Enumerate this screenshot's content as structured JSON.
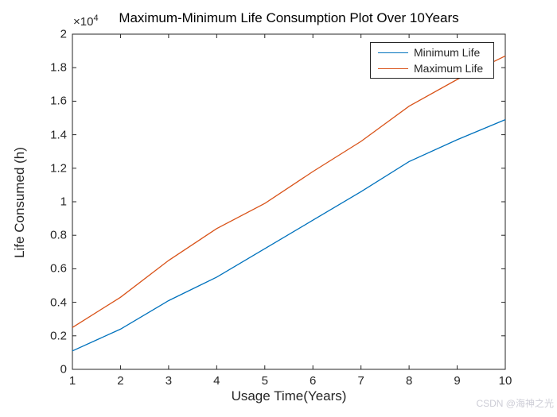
{
  "figure": {
    "title": "Maximum-Minimum Life Consumption Plot Over 10Years",
    "exponent_prefix": "×10",
    "exponent_power": "4",
    "xlabel": "Usage Time(Years)",
    "ylabel": "Life Consumed (h)",
    "axis_color": "#262626"
  },
  "legend": {
    "entries": [
      {
        "label": "Minimum Life",
        "color": "#0072BD"
      },
      {
        "label": "Maximum Life",
        "color": "#D95319"
      }
    ]
  },
  "watermark": "CSDN @海神之光",
  "chart_data": {
    "type": "line",
    "title": "Maximum-Minimum Life Consumption Plot Over 10Years",
    "xlabel": "Usage Time(Years)",
    "ylabel": "Life Consumed (h)",
    "x": [
      1,
      2,
      3,
      4,
      5,
      6,
      7,
      8,
      9,
      10
    ],
    "series": [
      {
        "name": "Minimum Life",
        "color": "#0072BD",
        "values": [
          1100,
          2400,
          4100,
          5500,
          7200,
          8900,
          10600,
          12400,
          13700,
          14900
        ]
      },
      {
        "name": "Maximum Life",
        "color": "#D95319",
        "values": [
          2500,
          4300,
          6500,
          8400,
          9900,
          11800,
          13600,
          15700,
          17300,
          18700
        ]
      }
    ],
    "xlim": [
      1,
      10
    ],
    "ylim": [
      0,
      20000
    ],
    "xticks": [
      1,
      2,
      3,
      4,
      5,
      6,
      7,
      8,
      9,
      10
    ],
    "xtick_labels": [
      "1",
      "2",
      "3",
      "4",
      "5",
      "6",
      "7",
      "8",
      "9",
      "10"
    ],
    "yticks": [
      0,
      2000,
      4000,
      6000,
      8000,
      10000,
      12000,
      14000,
      16000,
      18000,
      20000
    ],
    "ytick_labels": [
      "0",
      "0.2",
      "0.4",
      "0.6",
      "0.8",
      "1",
      "1.2",
      "1.4",
      "1.6",
      "1.8",
      "2"
    ],
    "y_exponent": "1e4",
    "grid": false,
    "legend_position": "top-right",
    "box": true,
    "tick_direction": "in"
  }
}
